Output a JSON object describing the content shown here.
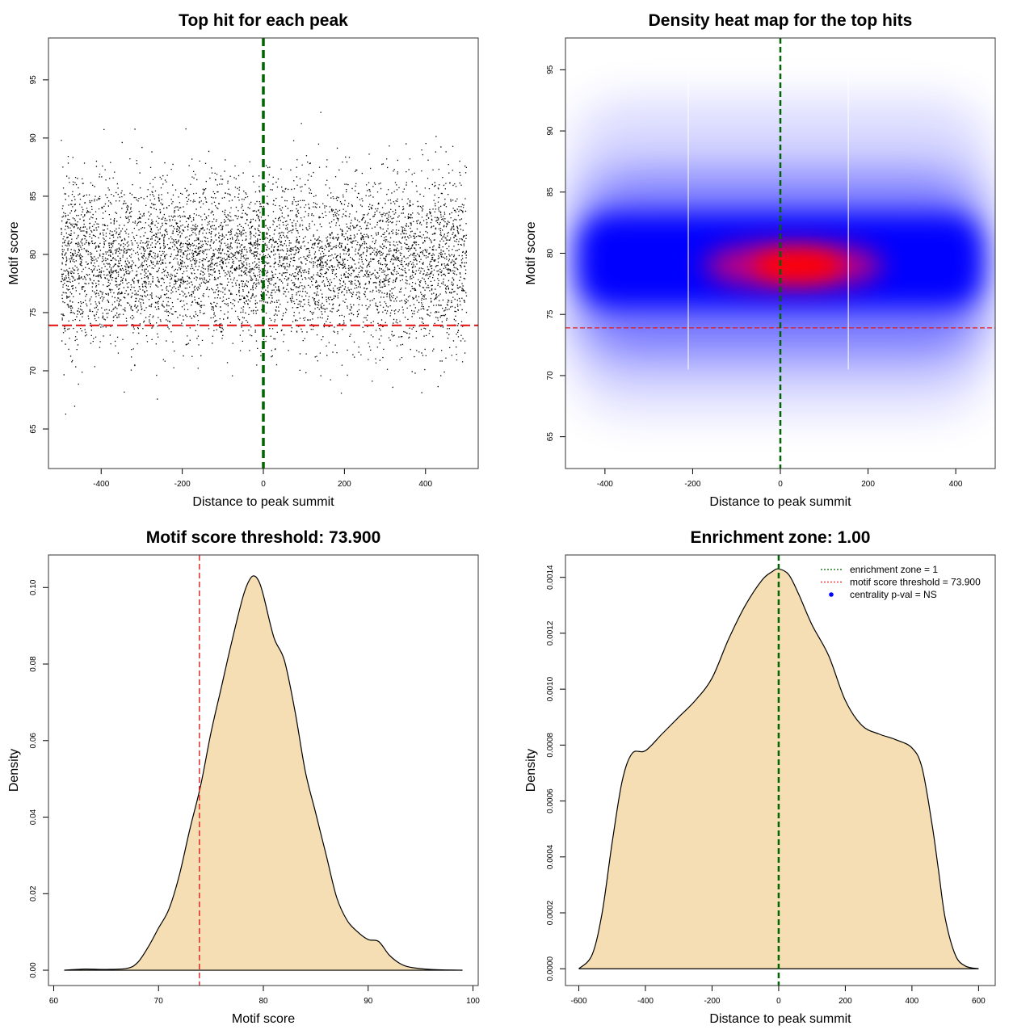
{
  "chart_data": [
    {
      "type": "scatter",
      "title": "Top hit for each peak",
      "xlabel": "Distance to peak summit",
      "ylabel": "Motif score",
      "xlim": [
        -530,
        530
      ],
      "ylim": [
        61.6,
        98.6
      ],
      "xticks": [
        -400,
        -200,
        0,
        200,
        400
      ],
      "yticks": [
        65,
        70,
        75,
        80,
        85,
        90,
        95
      ],
      "x_range": [
        -500,
        500
      ],
      "score_center": 79.5,
      "score_sd": 3.8,
      "n_points": 6000,
      "vline": {
        "x": 0,
        "color": "#006400"
      },
      "hline": {
        "y": 73.9,
        "color": "#e31a1c"
      },
      "point_color": "#000000"
    },
    {
      "type": "heatmap",
      "title": "Density heat map for the top hits",
      "xlabel": "Distance to peak summit",
      "ylabel": "Motif score",
      "xlim": [
        -490,
        490
      ],
      "ylim": [
        62.4,
        97.6
      ],
      "xticks": [
        -400,
        -200,
        0,
        200,
        400
      ],
      "yticks": [
        65,
        70,
        75,
        80,
        85,
        90,
        95
      ],
      "peak": {
        "x": 40,
        "y": 79
      },
      "colors": [
        "#ffffff",
        "#0000ff",
        "#ff0000"
      ],
      "vline": {
        "x": 0,
        "color": "#006400"
      },
      "hline": {
        "y": 73.9,
        "color": "#e31a1c"
      }
    },
    {
      "type": "area",
      "title": "Motif score threshold: 73.900",
      "xlabel": "Motif score",
      "ylabel": "Density",
      "xlim": [
        59.5,
        100.5
      ],
      "ylim": [
        -0.004,
        0.1085
      ],
      "xticks": [
        60,
        70,
        80,
        90,
        100
      ],
      "yticks": [
        0.0,
        0.02,
        0.04,
        0.06,
        0.08,
        0.1
      ],
      "ytick_labels": [
        "0.00",
        "0.02",
        "0.04",
        "0.06",
        "0.08",
        "0.10"
      ],
      "x": [
        61,
        63,
        65,
        67,
        68,
        69,
        70,
        71,
        72,
        73,
        74,
        75,
        76,
        77,
        78,
        78.5,
        79,
        79.5,
        80,
        81,
        82,
        83,
        84,
        85,
        86,
        87,
        88,
        89,
        90,
        91,
        92,
        93,
        94,
        96,
        99
      ],
      "values": [
        0.0,
        0.0003,
        0.0002,
        0.0005,
        0.002,
        0.006,
        0.011,
        0.016,
        0.025,
        0.037,
        0.048,
        0.062,
        0.074,
        0.086,
        0.097,
        0.101,
        0.103,
        0.102,
        0.098,
        0.087,
        0.081,
        0.068,
        0.052,
        0.041,
        0.03,
        0.019,
        0.013,
        0.01,
        0.008,
        0.0075,
        0.004,
        0.0018,
        0.0008,
        0.0002,
        0.0
      ],
      "fill": "#f5deb3",
      "vline": {
        "x": 73.9,
        "color": "#e31a1c"
      }
    },
    {
      "type": "area",
      "title": "Enrichment zone: 1.00",
      "xlabel": "Distance to peak summit",
      "ylabel": "Density",
      "xlim": [
        -640,
        650
      ],
      "ylim": [
        -6e-05,
        0.00148
      ],
      "xticks": [
        -600,
        -400,
        -200,
        0,
        200,
        400,
        600
      ],
      "yticks": [
        0.0,
        0.0002,
        0.0004,
        0.0006,
        0.0008,
        0.001,
        0.0012,
        0.0014
      ],
      "ytick_labels": [
        "0.0000",
        "0.0002",
        "0.0004",
        "0.0006",
        "0.0008",
        "0.0010",
        "0.0012",
        "0.0014"
      ],
      "x": [
        -600,
        -560,
        -530,
        -500,
        -470,
        -440,
        -400,
        -350,
        -300,
        -250,
        -200,
        -150,
        -100,
        -50,
        -20,
        0,
        30,
        60,
        100,
        150,
        200,
        250,
        300,
        350,
        400,
        430,
        460,
        480,
        500,
        530,
        560,
        600
      ],
      "values": [
        0.0,
        5e-05,
        0.0002,
        0.00045,
        0.00067,
        0.00077,
        0.00078,
        0.00084,
        0.0009,
        0.00096,
        0.00104,
        0.00118,
        0.0013,
        0.00139,
        0.00142,
        0.00143,
        0.00141,
        0.00134,
        0.00123,
        0.00112,
        0.00096,
        0.00087,
        0.00084,
        0.00082,
        0.00079,
        0.00072,
        0.00052,
        0.00035,
        0.00018,
        5e-05,
        1e-05,
        0.0
      ],
      "fill": "#f5deb3",
      "vline": {
        "x": 0,
        "color": "#006400"
      },
      "legend": {
        "position": "top-right",
        "entries": [
          {
            "label": "enrichment zone = 1",
            "color": "#006400",
            "style": "dotted-line"
          },
          {
            "label": "motif score threshold = 73.900",
            "color": "#e31a1c",
            "style": "dotted-line"
          },
          {
            "label": "centrality p-val = NS",
            "color": "#0000ff",
            "style": "point"
          }
        ]
      }
    }
  ]
}
